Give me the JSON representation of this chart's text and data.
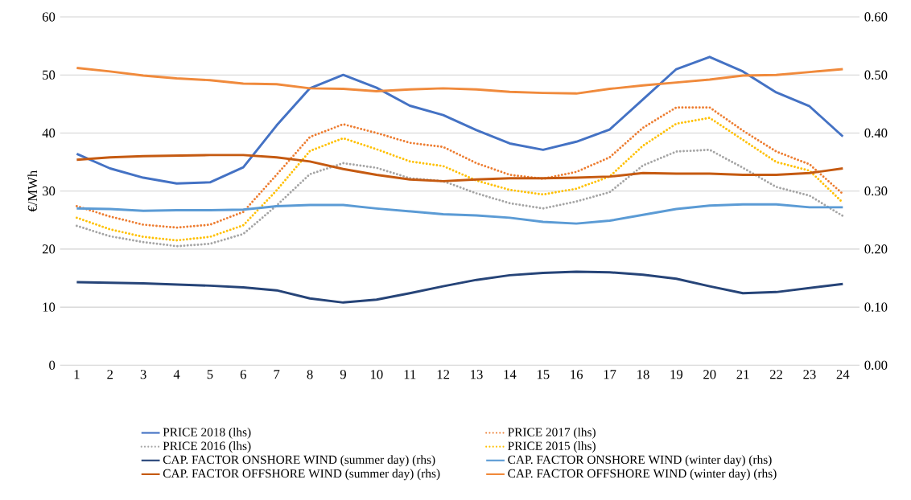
{
  "chart_data": {
    "type": "line",
    "ylabel": "€/MWh",
    "categories": [
      "1",
      "2",
      "3",
      "4",
      "5",
      "6",
      "7",
      "8",
      "9",
      "10",
      "11",
      "12",
      "13",
      "14",
      "15",
      "16",
      "17",
      "18",
      "19",
      "20",
      "21",
      "22",
      "23",
      "24"
    ],
    "ylim": [
      0,
      60
    ],
    "yticks": [
      0,
      10,
      20,
      30,
      40,
      50,
      60
    ],
    "y2lim": [
      0,
      0.6
    ],
    "y2ticks": [
      {
        "value": 0,
        "label": "0.00"
      },
      {
        "value": 0.1,
        "label": "0.10"
      },
      {
        "value": 0.2,
        "label": "0.20"
      },
      {
        "value": 0.3,
        "label": "0.30"
      },
      {
        "value": 0.4,
        "label": "0.40"
      },
      {
        "value": 0.5,
        "label": "0.50"
      },
      {
        "value": 0.6,
        "label": "0.60"
      }
    ],
    "grid": "y",
    "legend": "bottom",
    "marker": "none",
    "series": [
      {
        "name": "PRICE 2018 (lhs)",
        "color": "#4472c4",
        "line_style": "solid",
        "axis": "y",
        "values": [
          36.4,
          33.9,
          32.3,
          31.3,
          31.5,
          34.1,
          41.3,
          47.7,
          50.0,
          47.8,
          44.7,
          43.1,
          40.5,
          38.2,
          37.1,
          38.5,
          40.6,
          45.8,
          51.0,
          53.1,
          50.6,
          47.0,
          44.6,
          39.4
        ]
      },
      {
        "name": "PRICE 2017 (lhs)",
        "color": "#ed7d31",
        "line_style": "dotted",
        "axis": "y",
        "values": [
          27.4,
          25.6,
          24.2,
          23.7,
          24.2,
          26.4,
          32.8,
          39.3,
          41.5,
          40.0,
          38.3,
          37.6,
          34.8,
          32.8,
          32.1,
          33.3,
          35.8,
          40.9,
          44.4,
          44.4,
          40.4,
          36.8,
          34.6,
          29.5
        ]
      },
      {
        "name": "PRICE 2016 (lhs)",
        "color": "#a5a5a5",
        "line_style": "dotted",
        "axis": "y",
        "values": [
          24.0,
          22.2,
          21.2,
          20.5,
          20.9,
          22.6,
          27.5,
          32.9,
          34.8,
          34.0,
          32.2,
          31.7,
          29.6,
          27.9,
          27.0,
          28.2,
          29.8,
          34.4,
          36.8,
          37.1,
          34.0,
          30.7,
          29.2,
          25.7
        ]
      },
      {
        "name": "PRICE 2015 (lhs)",
        "color": "#ffc000",
        "line_style": "dotted",
        "axis": "y",
        "values": [
          25.4,
          23.4,
          22.1,
          21.5,
          22.1,
          24.1,
          30.1,
          36.9,
          39.1,
          37.2,
          35.1,
          34.3,
          31.8,
          30.2,
          29.4,
          30.4,
          32.5,
          37.8,
          41.6,
          42.6,
          38.8,
          35.0,
          33.5,
          28.0
        ]
      },
      {
        "name": "CAP. FACTOR ONSHORE WIND (summer day) (rhs)",
        "color": "#264478",
        "line_style": "solid",
        "axis": "y2",
        "values": [
          0.143,
          0.142,
          0.141,
          0.139,
          0.137,
          0.134,
          0.129,
          0.115,
          0.108,
          0.113,
          0.124,
          0.136,
          0.147,
          0.155,
          0.159,
          0.161,
          0.16,
          0.156,
          0.149,
          0.136,
          0.124,
          0.126,
          0.133,
          0.14
        ]
      },
      {
        "name": "CAP. FACTOR ONSHORE WIND (winter day) (rhs)",
        "color": "#5b9bd5",
        "line_style": "solid",
        "axis": "y2",
        "values": [
          0.27,
          0.269,
          0.266,
          0.267,
          0.267,
          0.268,
          0.274,
          0.276,
          0.276,
          0.27,
          0.265,
          0.26,
          0.258,
          0.254,
          0.247,
          0.244,
          0.249,
          0.259,
          0.269,
          0.275,
          0.277,
          0.277,
          0.272,
          0.272
        ]
      },
      {
        "name": "CAP. FACTOR OFFSHORE WIND (summer day) (rhs)",
        "color": "#c55a11",
        "line_style": "solid",
        "axis": "y2",
        "values": [
          0.354,
          0.358,
          0.36,
          0.361,
          0.362,
          0.362,
          0.358,
          0.351,
          0.338,
          0.328,
          0.32,
          0.317,
          0.32,
          0.322,
          0.322,
          0.323,
          0.325,
          0.331,
          0.33,
          0.33,
          0.328,
          0.328,
          0.331,
          0.339
        ]
      },
      {
        "name": "CAP. FACTOR OFFSHORE WIND (winter day) (rhs)",
        "color": "#f08a3c",
        "line_style": "solid",
        "axis": "y2",
        "values": [
          0.512,
          0.506,
          0.499,
          0.494,
          0.491,
          0.485,
          0.484,
          0.477,
          0.476,
          0.472,
          0.475,
          0.477,
          0.475,
          0.471,
          0.469,
          0.468,
          0.476,
          0.482,
          0.487,
          0.492,
          0.499,
          0.5,
          0.505,
          0.51
        ]
      }
    ]
  }
}
